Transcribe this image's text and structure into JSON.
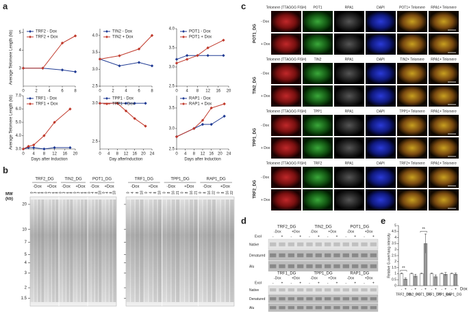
{
  "panel_labels": [
    "a",
    "b",
    "c",
    "d",
    "e"
  ],
  "chart_data": [
    {
      "type": "line",
      "ylabel": "Average Telomere Length (kb)",
      "x": [
        0,
        3,
        6,
        8
      ],
      "xlim": [
        0,
        8
      ],
      "xticks": [
        0,
        2,
        4,
        6,
        8
      ],
      "ylim": [
        2,
        5.2
      ],
      "yticks": [
        3,
        4,
        5
      ],
      "series": [
        {
          "name": "TRF2 - Dox",
          "color": "#1f3a93",
          "values": [
            3.0,
            3.0,
            2.9,
            2.8
          ]
        },
        {
          "name": "TRF2 + Dox",
          "color": "#c0392b",
          "values": [
            3.0,
            3.0,
            4.4,
            4.8
          ]
        }
      ]
    },
    {
      "type": "line",
      "x": [
        0,
        3,
        6,
        8
      ],
      "xlim": [
        0,
        8
      ],
      "xticks": [
        0,
        2,
        4,
        6,
        8
      ],
      "ylim": [
        2.5,
        4.2
      ],
      "yticks": [
        2.5,
        {
          "value": 3,
          "label": "3.0"
        },
        3.5,
        {
          "value": 4,
          "label": "4.0"
        }
      ],
      "series": [
        {
          "name": "TIN2 - Dox",
          "color": "#1f3a93",
          "values": [
            3.3,
            3.1,
            3.2,
            3.1
          ]
        },
        {
          "name": "TIN2 + Dox",
          "color": "#c0392b",
          "values": [
            3.3,
            3.4,
            3.6,
            4.0
          ]
        }
      ]
    },
    {
      "type": "line",
      "x": [
        0,
        4,
        8,
        12,
        18
      ],
      "xlim": [
        0,
        20
      ],
      "xticks": [
        0,
        4,
        8,
        12,
        16,
        20
      ],
      "ylim": [
        2.5,
        4.0
      ],
      "yticks": [
        2.5,
        {
          "value": 3,
          "label": "3.0"
        },
        3.5,
        {
          "value": 4,
          "label": "4.0"
        }
      ],
      "series": [
        {
          "name": "POT1 - Dox",
          "color": "#1f3a93",
          "values": [
            3.2,
            3.3,
            3.3,
            3.3,
            3.3
          ]
        },
        {
          "name": "POT1 + Dox",
          "color": "#c0392b",
          "values": [
            3.1,
            3.2,
            3.3,
            3.5,
            3.7
          ]
        }
      ]
    },
    {
      "type": "line",
      "ylabel": "Average Telomere Length (kb)",
      "xlabel": "Days  after Induction",
      "x": [
        0,
        2,
        4,
        8,
        12,
        18
      ],
      "xlim": [
        0,
        20
      ],
      "xticks": [
        0,
        4,
        8,
        12,
        16,
        20
      ],
      "ylim": [
        3,
        7
      ],
      "yticks": [
        {
          "value": 3,
          "label": "3.0"
        },
        {
          "value": 4,
          "label": "4.0"
        },
        {
          "value": 5,
          "label": "5.0"
        },
        {
          "value": 6,
          "label": "6.0"
        },
        {
          "value": 7,
          "label": "7.0"
        }
      ],
      "series": [
        {
          "name": "TRF1 - Dox",
          "color": "#1f3a93",
          "values": [
            3.0,
            3.1,
            3.1,
            3.0,
            3.1,
            3.1
          ]
        },
        {
          "name": "TRF1 + Dox",
          "color": "#c0392b",
          "values": [
            3.0,
            3.2,
            3.3,
            4.0,
            5.0,
            6.0
          ]
        }
      ]
    },
    {
      "type": "line",
      "xlabel": "Day afterInduction",
      "x": [
        0,
        8,
        12,
        16,
        21
      ],
      "xlim": [
        0,
        24
      ],
      "xticks": [
        0,
        4,
        8,
        12,
        16,
        20,
        24
      ],
      "ylim": [
        2.4,
        3.1
      ],
      "yticks": [
        2.5,
        {
          "value": 3,
          "label": "3.0"
        }
      ],
      "series": [
        {
          "name": "TPP1 - Dox",
          "color": "#1f3a93",
          "values": [
            3.0,
            3.0,
            3.0,
            3.0,
            3.0
          ]
        },
        {
          "name": "TPP1 + Dox",
          "color": "#c0392b",
          "values": [
            3.0,
            3.0,
            2.9,
            2.8,
            2.7
          ]
        }
      ]
    },
    {
      "type": "line",
      "xlabel": "Days after Induction",
      "x": [
        0,
        8,
        12,
        16,
        22
      ],
      "xlim": [
        0,
        24
      ],
      "xticks": [
        0,
        4,
        8,
        12,
        16,
        20,
        24
      ],
      "ylim": [
        2.5,
        3.8
      ],
      "yticks": [
        2.5,
        {
          "value": 3,
          "label": "3.0"
        },
        3.5
      ],
      "series": [
        {
          "name": "RAP1 - Dox",
          "color": "#1f3a93",
          "values": [
            2.8,
            3.0,
            3.1,
            3.1,
            3.3
          ]
        },
        {
          "name": "RAP1 + Dox",
          "color": "#c0392b",
          "values": [
            2.8,
            3.0,
            3.2,
            3.5,
            3.6
          ]
        }
      ]
    },
    {
      "type": "bar",
      "ylabel": "Relative G-overhang intensity",
      "xlabel": "Dox",
      "categories": [
        "TRF2_DG",
        "TIN2_DG",
        "POT1_DG",
        "TRF1_DG",
        "TPP1_DG",
        "RAP1_DG"
      ],
      "ylim": [
        0,
        5
      ],
      "yticks": [
        0,
        0.5,
        1,
        1.5,
        2,
        2.5,
        3,
        3.5,
        4,
        4.5,
        5
      ],
      "significance": [
        "**",
        null,
        "**",
        null,
        null,
        null
      ],
      "series": [
        {
          "name": "-",
          "color": "#ffffff",
          "values": [
            1,
            1,
            1,
            1,
            1,
            1
          ],
          "errors": [
            0.05,
            0.05,
            0.05,
            0.05,
            0.05,
            0.05
          ]
        },
        {
          "name": "+",
          "color": "#9a9a9a",
          "values": [
            0.55,
            0.8,
            3.5,
            0.75,
            0.95,
            0.95
          ],
          "errors": [
            0.1,
            0.15,
            0.8,
            0.15,
            0.15,
            0.1
          ]
        }
      ]
    }
  ],
  "gel_b": {
    "mw_label": [
      "MW",
      "(kb)"
    ],
    "ladder": [
      20,
      10,
      7,
      5,
      4,
      3,
      2,
      1.5
    ],
    "gels": [
      [
        {
          "name": "TRF2_DG",
          "conditions": [
            "-Dox",
            "+Dox"
          ],
          "lanes": [
            "0",
            "3",
            "6",
            "8"
          ]
        },
        {
          "name": "TIN2_DG",
          "conditions": [
            "-Dox",
            "+Dox"
          ],
          "lanes": [
            "0",
            "3",
            "6",
            "8"
          ]
        },
        {
          "name": "POT1_DG",
          "conditions": [
            "-Dox",
            "+Dox"
          ],
          "lanes": [
            "0",
            "4",
            "8",
            "18"
          ]
        }
      ],
      [
        {
          "name": "TRF1_DG",
          "conditions": [
            "-Dox",
            "+Dox"
          ],
          "lanes": [
            "0",
            "4",
            "8",
            "18"
          ]
        },
        {
          "name": "TPP1_DG",
          "conditions": [
            "-Dox",
            "+Dox"
          ],
          "lanes": [
            "0",
            "8",
            "16",
            "21"
          ]
        },
        {
          "name": "RAP1_DG",
          "conditions": [
            "-Dox",
            "+Dox"
          ],
          "lanes": [
            "0",
            "8",
            "16",
            "22"
          ]
        }
      ]
    ]
  },
  "microscopy": [
    {
      "name": "POT1_DG",
      "headers": [
        "Telomere (TTAGGG FISH)",
        "POT1",
        "RPA1",
        "DAPI",
        "POT1+ Telomere",
        "RPA1+ Telomere"
      ],
      "rows": [
        "- Dox",
        "+ Dox"
      ]
    },
    {
      "name": "TIN2_DG",
      "headers": [
        "Telomere (TTAGGG FISH)",
        "TIN2",
        "RPA1",
        "DAPI",
        "TIN2+ Telomere",
        "RPA1+ Telomere"
      ],
      "rows": [
        "- Dox",
        "+ Dox"
      ]
    },
    {
      "name": "TPP1_DG",
      "headers": [
        "Telomere (TTAGGG FISH)",
        "TPP1",
        "RPA1",
        "DAPI",
        "TPP1+ Telomere",
        "RPA1+ Telomere"
      ],
      "rows": [
        "- Dox",
        "+ Dox"
      ]
    },
    {
      "name": "TRF2_DG",
      "headers": [
        "Telomere (TTAGGG FISH)",
        "TRF2",
        "RPA1",
        "DAPI",
        "TRF2+ Telomere",
        "RPA1+ Telomere"
      ],
      "rows": [
        "- Dox",
        "+ Dox"
      ]
    }
  ],
  "gel_d": {
    "blocks": [
      [
        "TRF2_DG",
        "TIN2_DG",
        "POT1_DG"
      ],
      [
        "TRF1_DG",
        "TPP1_DG",
        "RAP1_DG"
      ]
    ],
    "conditions": [
      "-Dox",
      "+Dox"
    ],
    "enzyme": "ExoI",
    "signs": [
      "-",
      "+"
    ],
    "rows": [
      "Native",
      "Denatured",
      "Alu"
    ]
  }
}
